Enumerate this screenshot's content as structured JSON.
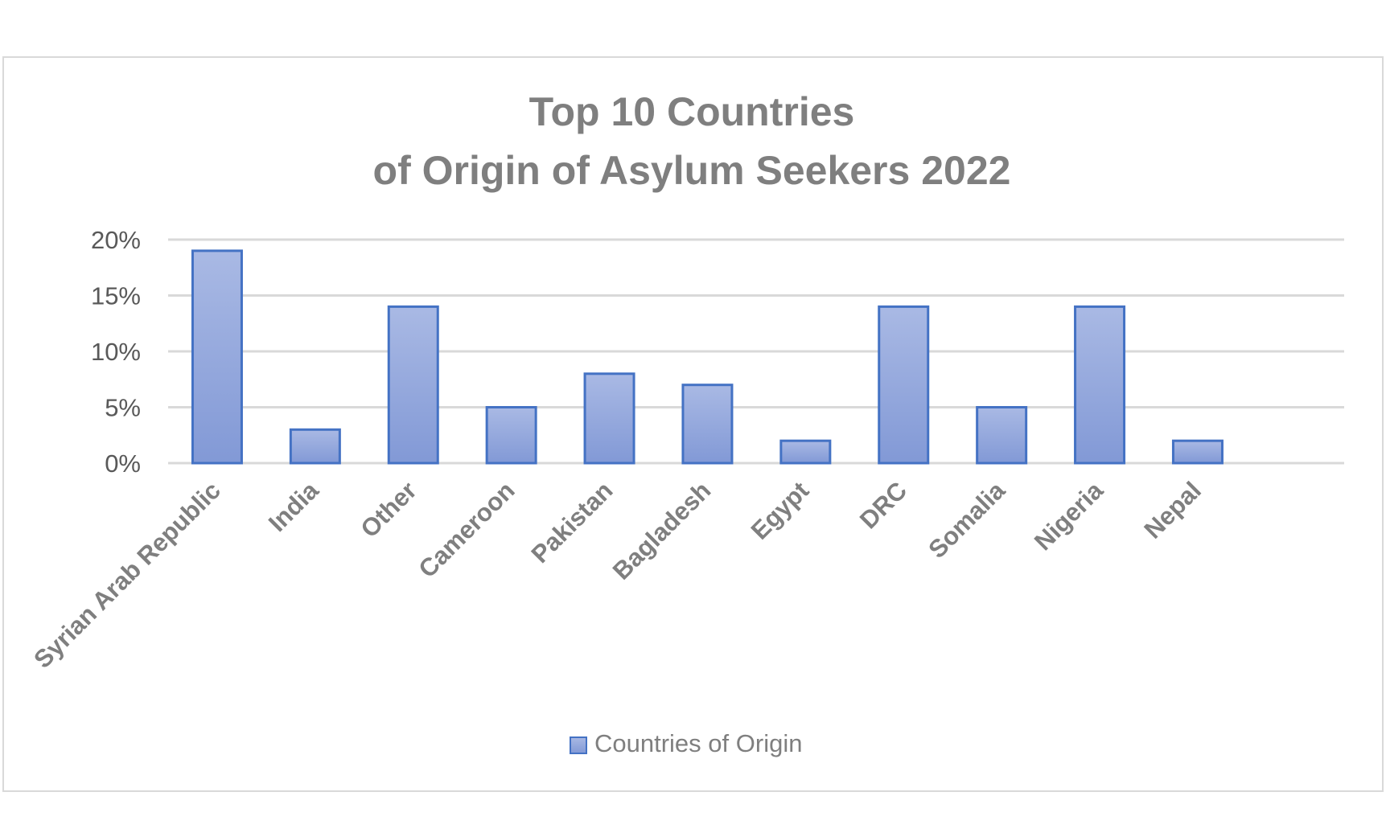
{
  "chart_data": {
    "type": "bar",
    "title_lines": [
      "Top 10 Countries",
      "of Origin of Asylum Seekers 2022"
    ],
    "categories": [
      "Syrian Arab Republic",
      "India",
      "Other",
      "Cameroon",
      "Pakistan",
      "Bagladesh",
      "Egypt",
      "DRC",
      "Somalia",
      "Nigeria",
      "Nepal"
    ],
    "series": [
      {
        "name": "Countries of Origin",
        "values": [
          19,
          3,
          14,
          5,
          8,
          7,
          2,
          14,
          5,
          14,
          2
        ],
        "color": "#8fa5da",
        "border_color": "#4472c4"
      }
    ],
    "y_ticks": [
      "0%",
      "5%",
      "10%",
      "15%",
      "20%"
    ],
    "ylim": [
      0,
      20
    ],
    "grid": true,
    "legend_position": "bottom",
    "colors": {
      "title": "#7f7f7f",
      "axis_text": "#595959",
      "category_text": "#7f7f7f",
      "grid": "#d9d9d9"
    }
  }
}
